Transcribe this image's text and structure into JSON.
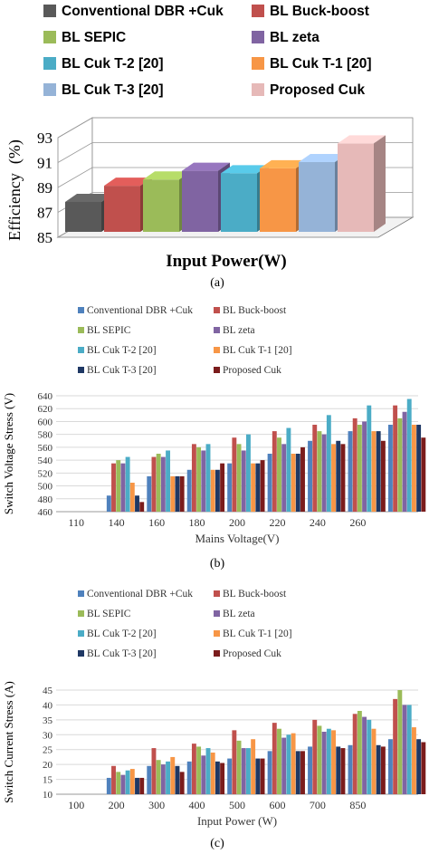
{
  "chart_data": [
    {
      "type": "bar",
      "panel_label": "(a)",
      "xlabel": "Input Power(W)",
      "ylabel": "Efficiency (%)",
      "ylabel_parts": [
        "Efficiency",
        "(%)"
      ],
      "ylim": [
        85,
        93
      ],
      "yticks": [
        85,
        87,
        89,
        91,
        93
      ],
      "three_d": true,
      "legend_position": "top",
      "series": [
        {
          "name": "Conventional DBR +Cuk",
          "color": "#595959",
          "value": 87.4
        },
        {
          "name": "BL Buck-boost",
          "color": "#c0504d",
          "value": 88.7
        },
        {
          "name": "BL SEPIC",
          "color": "#9bbb59",
          "value": 89.2
        },
        {
          "name": "BL zeta",
          "color": "#8064a2",
          "value": 89.9
        },
        {
          "name": "BL Cuk T-2 [20]",
          "color": "#4bacc6",
          "value": 89.7
        },
        {
          "name": "BL Cuk T-1 [20]",
          "color": "#f79646",
          "value": 90.1
        },
        {
          "name": "BL Cuk T-3 [20]",
          "color": "#95b3d7",
          "value": 90.6
        },
        {
          "name": "Proposed Cuk",
          "color": "#e6b9b8",
          "value": 92.1
        }
      ]
    },
    {
      "type": "bar",
      "panel_label": "(b)",
      "xlabel": "Mains Voltage(V)",
      "ylabel": "Switch Voltage Stress (V)",
      "ylim": [
        460,
        640
      ],
      "yticks": [
        460,
        480,
        500,
        520,
        540,
        560,
        580,
        600,
        620,
        640
      ],
      "categories": [
        "110",
        "140",
        "160",
        "180",
        "200",
        "220",
        "240",
        "260",
        ""
      ],
      "legend_position": "top",
      "series": [
        {
          "name": "Conventional DBR +Cuk",
          "color": "#4f81bd",
          "values": [
            null,
            485,
            515,
            525,
            535,
            550,
            570,
            585,
            595
          ]
        },
        {
          "name": "BL Buck-boost",
          "color": "#c0504d",
          "values": [
            null,
            535,
            545,
            565,
            575,
            585,
            595,
            605,
            625
          ]
        },
        {
          "name": "BL SEPIC",
          "color": "#9bbb59",
          "values": [
            null,
            540,
            550,
            560,
            565,
            575,
            585,
            595,
            605
          ]
        },
        {
          "name": "BL zeta",
          "color": "#8064a2",
          "values": [
            null,
            535,
            545,
            555,
            555,
            565,
            580,
            600,
            615
          ]
        },
        {
          "name": "BL Cuk T-2 [20]",
          "color": "#4bacc6",
          "values": [
            null,
            545,
            555,
            565,
            580,
            590,
            610,
            625,
            635
          ]
        },
        {
          "name": "BL Cuk T-1 [20]",
          "color": "#f79646",
          "values": [
            null,
            505,
            515,
            525,
            535,
            550,
            565,
            585,
            595
          ]
        },
        {
          "name": "BL Cuk T-3 [20]",
          "color": "#1f3864",
          "values": [
            null,
            485,
            515,
            525,
            535,
            550,
            570,
            585,
            595
          ]
        },
        {
          "name": "Proposed Cuk",
          "color": "#7b1c1c",
          "values": [
            null,
            475,
            515,
            535,
            540,
            560,
            565,
            570,
            575
          ]
        }
      ]
    },
    {
      "type": "bar",
      "panel_label": "(c)",
      "xlabel": "Input Power (W)",
      "ylabel": "Switch Current Stress (A)",
      "ylim": [
        10,
        45
      ],
      "yticks": [
        10,
        15,
        20,
        25,
        30,
        35,
        40,
        45
      ],
      "categories": [
        "100",
        "200",
        "300",
        "400",
        "500",
        "600",
        "700",
        "850",
        ""
      ],
      "legend_position": "top",
      "series": [
        {
          "name": "Conventional DBR +Cuk",
          "color": "#4f81bd",
          "values": [
            null,
            15.5,
            19.5,
            21,
            22,
            24.5,
            26,
            26.5,
            28.5
          ]
        },
        {
          "name": "BL Buck-boost",
          "color": "#c0504d",
          "values": [
            null,
            19.5,
            25.5,
            27,
            31.5,
            34,
            35,
            37,
            42
          ]
        },
        {
          "name": "BL SEPIC",
          "color": "#9bbb59",
          "values": [
            null,
            17.5,
            21.5,
            26,
            28,
            32,
            33,
            38,
            45
          ]
        },
        {
          "name": "BL zeta",
          "color": "#8064a2",
          "values": [
            null,
            16.5,
            20,
            23,
            25.5,
            29,
            31,
            36,
            40
          ]
        },
        {
          "name": "BL Cuk T-2 [20]",
          "color": "#4bacc6",
          "values": [
            null,
            18,
            21,
            25.5,
            25.5,
            30,
            32,
            35,
            40
          ]
        },
        {
          "name": "BL Cuk T-1 [20]",
          "color": "#f79646",
          "values": [
            null,
            18.5,
            22.5,
            24,
            28.5,
            30.5,
            31.5,
            32,
            32.5
          ]
        },
        {
          "name": "BL Cuk T-3 [20]",
          "color": "#1f3864",
          "values": [
            null,
            15.5,
            19.5,
            21,
            22,
            24.5,
            26,
            26.5,
            28.5
          ]
        },
        {
          "name": "Proposed Cuk",
          "color": "#7b1c1c",
          "values": [
            null,
            15.5,
            17.5,
            20.5,
            22,
            24.5,
            25.5,
            26,
            27.5
          ]
        }
      ]
    }
  ]
}
